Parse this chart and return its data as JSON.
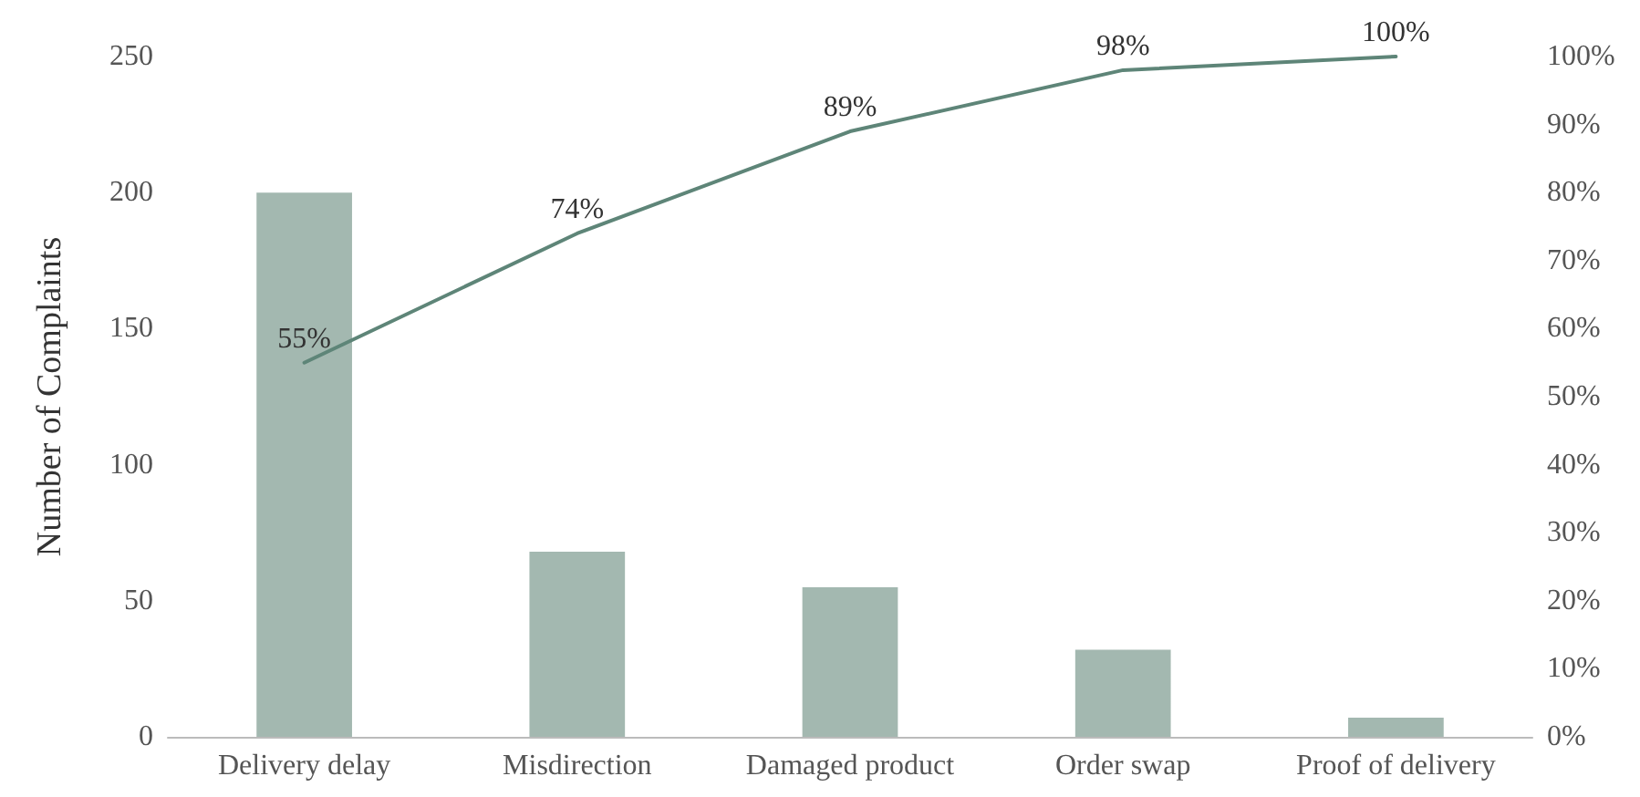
{
  "chart_data": {
    "type": "bar",
    "ylabel": "Number of Complaints",
    "categories": [
      "Delivery delay",
      "Misdirection",
      "Damaged product",
      "Order swap",
      "Proof of delivery"
    ],
    "series": [
      {
        "color": "#a3b8b0",
        "values": [
          200,
          68,
          55,
          32,
          7
        ]
      },
      {
        "type": "line",
        "axis": "y2",
        "color": "#5e8578",
        "values": [
          55,
          74,
          89,
          98,
          100
        ],
        "value_labels": [
          "55%",
          "74%",
          "89%",
          "98%",
          "100%"
        ]
      }
    ],
    "ylim": [
      0,
      250
    ],
    "yticks": [
      0,
      50,
      100,
      150,
      200,
      250
    ],
    "y2lim": [
      0,
      100
    ],
    "y2ticks": [
      {
        "value": 0,
        "label": "0%"
      },
      {
        "value": 10,
        "label": "10%"
      },
      {
        "value": 20,
        "label": "20%"
      },
      {
        "value": 30,
        "label": "30%"
      },
      {
        "value": 40,
        "label": "40%"
      },
      {
        "value": 50,
        "label": "50%"
      },
      {
        "value": 60,
        "label": "60%"
      },
      {
        "value": 70,
        "label": "70%"
      },
      {
        "value": 80,
        "label": "80%"
      },
      {
        "value": 90,
        "label": "90%"
      },
      {
        "value": 100,
        "label": "100%"
      }
    ],
    "marker": "none",
    "line_style": "solid",
    "grid": false
  }
}
